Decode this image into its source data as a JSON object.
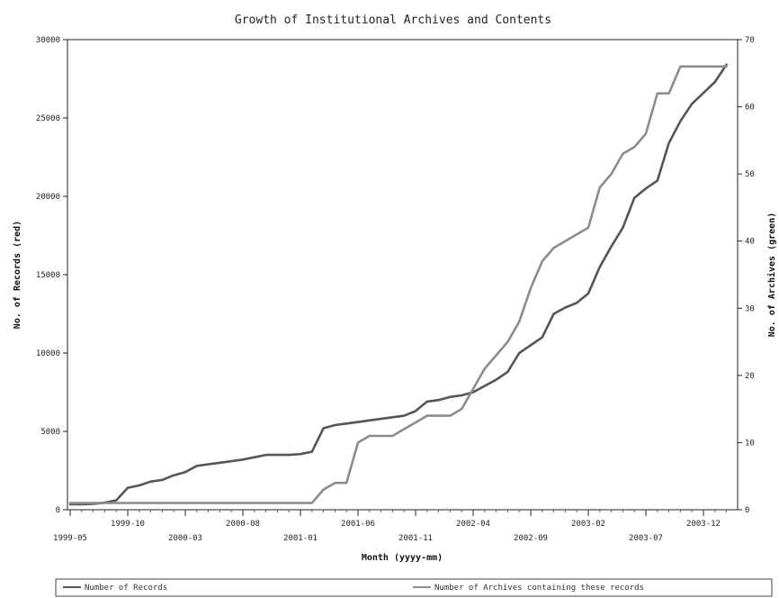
{
  "chart_data": {
    "type": "line",
    "title": "Growth of Institutional Archives and Contents",
    "xlabel": "Month (yyyy-mm)",
    "ylabel": "No. of Records (red)",
    "y2label": "No. of Archives (green)",
    "ylim": [
      0,
      30000
    ],
    "y2lim": [
      0,
      70
    ],
    "yticks": [
      "0",
      "5000",
      "10000",
      "15000",
      "20000",
      "25000",
      "30000"
    ],
    "y2ticks": [
      "0",
      "10",
      "20",
      "30",
      "40",
      "50",
      "60",
      "70"
    ],
    "xticks_upper": [
      "1999-10",
      "2000-08",
      "2001-06",
      "2002-04",
      "2003-02",
      "2003-12"
    ],
    "xticks_lower": [
      "1999-05",
      "2000-03",
      "2001-01",
      "2001-11",
      "2002-09",
      "2003-07"
    ],
    "grid": false,
    "legend_position": "bottom",
    "colors": {
      "records": "#555555",
      "archives": "#8c8c8c"
    },
    "series": [
      {
        "name": "Number of Records",
        "axis": "left",
        "x": [
          "1999-05",
          "1999-06",
          "1999-07",
          "1999-08",
          "1999-09",
          "1999-10",
          "1999-11",
          "1999-12",
          "2000-01",
          "2000-02",
          "2000-03",
          "2000-04",
          "2000-05",
          "2000-06",
          "2000-07",
          "2000-08",
          "2000-09",
          "2000-10",
          "2000-11",
          "2000-12",
          "2001-01",
          "2001-02",
          "2001-03",
          "2001-04",
          "2001-05",
          "2001-06",
          "2001-07",
          "2001-08",
          "2001-09",
          "2001-10",
          "2001-11",
          "2001-12",
          "2002-01",
          "2002-02",
          "2002-03",
          "2002-04",
          "2002-05",
          "2002-06",
          "2002-07",
          "2002-08",
          "2002-09",
          "2002-10",
          "2002-11",
          "2002-12",
          "2003-01",
          "2003-02",
          "2003-03",
          "2003-04",
          "2003-05",
          "2003-06",
          "2003-07",
          "2003-08",
          "2003-09",
          "2003-10",
          "2003-11",
          "2003-12",
          "2004-01",
          "2004-02"
        ],
        "values": [
          350,
          350,
          380,
          450,
          600,
          1400,
          1550,
          1800,
          1900,
          2200,
          2400,
          2800,
          2900,
          3000,
          3100,
          3200,
          3350,
          3500,
          3500,
          3500,
          3550,
          3700,
          5200,
          5400,
          5500,
          5600,
          5700,
          5800,
          5900,
          6000,
          6300,
          6900,
          7000,
          7200,
          7300,
          7500,
          7900,
          8300,
          8800,
          10000,
          10500,
          11000,
          12500,
          12900,
          13200,
          13800,
          15500,
          16800,
          18000,
          19900,
          20500,
          21000,
          23400,
          24800,
          25900,
          26600,
          27300,
          28400
        ]
      },
      {
        "name": "Number of Archives containing these records",
        "axis": "right",
        "x": [
          "1999-05",
          "1999-06",
          "1999-07",
          "1999-08",
          "1999-09",
          "1999-10",
          "1999-11",
          "1999-12",
          "2000-01",
          "2000-02",
          "2000-03",
          "2000-04",
          "2000-05",
          "2000-06",
          "2000-07",
          "2000-08",
          "2000-09",
          "2000-10",
          "2000-11",
          "2000-12",
          "2001-01",
          "2001-02",
          "2001-03",
          "2001-04",
          "2001-05",
          "2001-06",
          "2001-07",
          "2001-08",
          "2001-09",
          "2001-10",
          "2001-11",
          "2001-12",
          "2002-01",
          "2002-02",
          "2002-03",
          "2002-04",
          "2002-05",
          "2002-06",
          "2002-07",
          "2002-08",
          "2002-09",
          "2002-10",
          "2002-11",
          "2002-12",
          "2003-01",
          "2003-02",
          "2003-03",
          "2003-04",
          "2003-05",
          "2003-06",
          "2003-07",
          "2003-08",
          "2003-09",
          "2003-10",
          "2003-11",
          "2003-12",
          "2004-01",
          "2004-02"
        ],
        "values": [
          1,
          1,
          1,
          1,
          1,
          1,
          1,
          1,
          1,
          1,
          1,
          1,
          1,
          1,
          1,
          1,
          1,
          1,
          1,
          1,
          1,
          1,
          3,
          4,
          4,
          10,
          11,
          11,
          11,
          12,
          13,
          14,
          14,
          14,
          15,
          18,
          21,
          23,
          25,
          28,
          33,
          37,
          39,
          40,
          41,
          42,
          48,
          50,
          53,
          54,
          56,
          62,
          62,
          66,
          66,
          66,
          66,
          66
        ]
      }
    ]
  }
}
